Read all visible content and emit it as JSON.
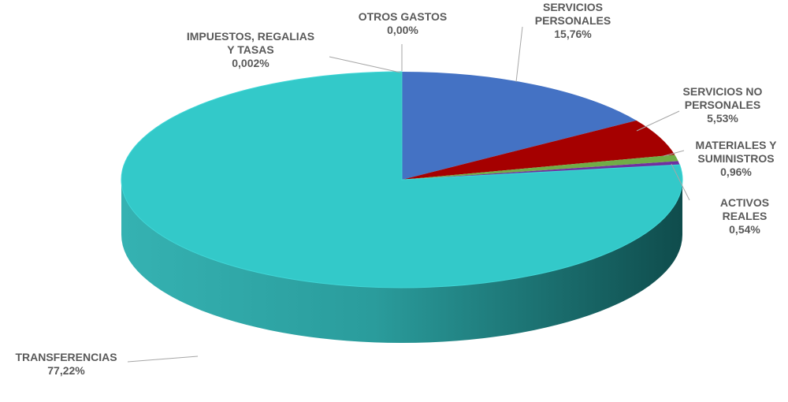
{
  "chart_data": {
    "type": "pie",
    "title": "",
    "slices": [
      {
        "key": "personales",
        "label": "SERVICIOS PERSONALES",
        "label_lines": [
          "SERVICIOS",
          "PERSONALES"
        ],
        "pct_text": "15,76%",
        "value": 15.76,
        "color": "#4472c4"
      },
      {
        "key": "nopersonales",
        "label": "SERVICIOS NO PERSONALES",
        "label_lines": [
          "SERVICIOS NO",
          "PERSONALES"
        ],
        "pct_text": "5,53%",
        "value": 5.53,
        "color": "#a50000"
      },
      {
        "key": "materiales",
        "label": "MATERIALES Y SUMINISTROS",
        "label_lines": [
          "MATERIALES Y",
          "SUMINISTROS"
        ],
        "pct_text": "0,96%",
        "value": 0.96,
        "color": "#70ad47"
      },
      {
        "key": "activos",
        "label": "ACTIVOS REALES",
        "label_lines": [
          "ACTIVOS",
          "REALES"
        ],
        "pct_text": "0,54%",
        "value": 0.54,
        "color": "#7030a0"
      },
      {
        "key": "transferencias",
        "label": "TRANSFERENCIAS",
        "label_lines": [
          "TRANSFERENCIAS"
        ],
        "pct_text": "77,22%",
        "value": 77.22,
        "color": "#33c9c9"
      },
      {
        "key": "impuestos",
        "label": "IMPUESTOS, REGALIAS Y TASAS",
        "label_lines": [
          "IMPUESTOS, REGALIAS",
          "Y TASAS"
        ],
        "pct_text": "0,002%",
        "value": 0.002,
        "color": "#ffc000"
      },
      {
        "key": "otros",
        "label": "OTROS GASTOS",
        "label_lines": [
          "OTROS GASTOS"
        ],
        "pct_text": "0,00%",
        "value": 0.0,
        "color": "#ed7d31"
      }
    ],
    "legend": "none",
    "style": "3d"
  }
}
